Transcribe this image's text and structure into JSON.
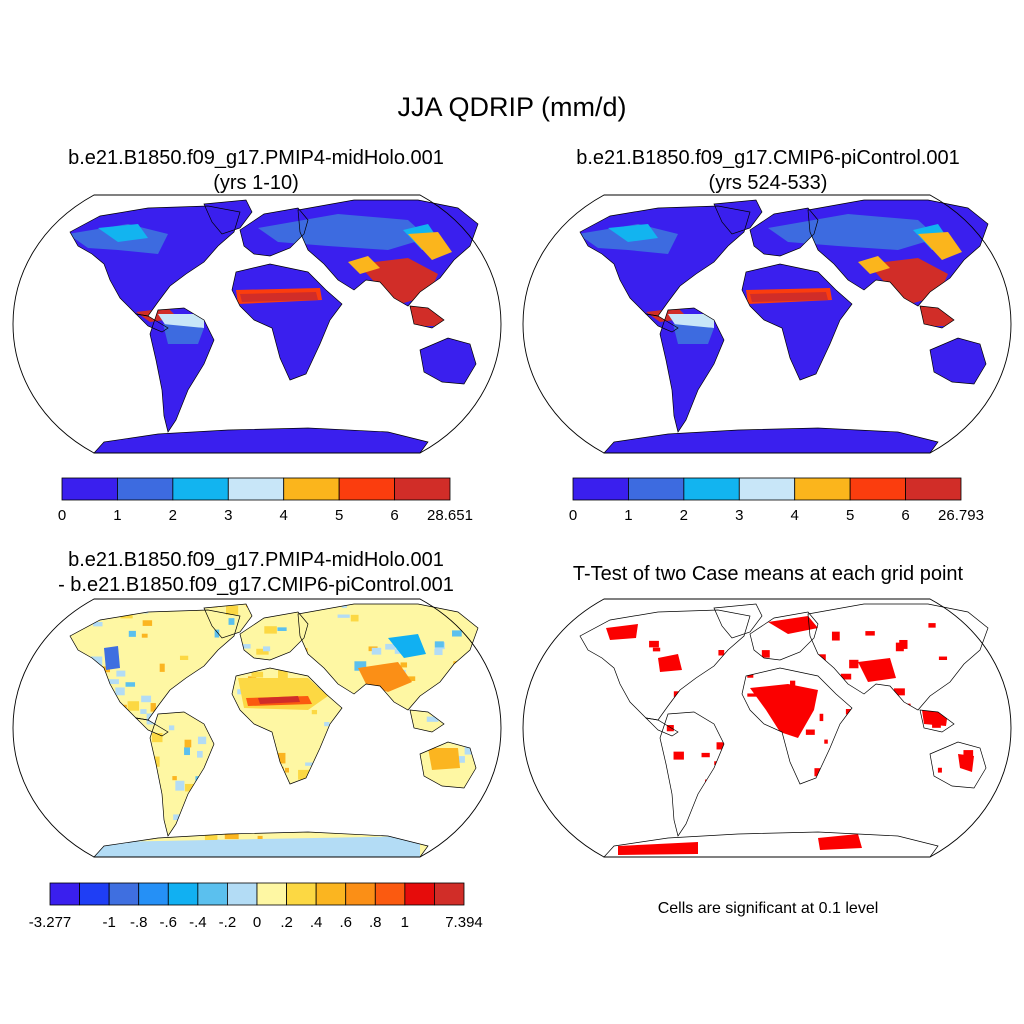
{
  "main_title": "JJA QDRIP (mm/d)",
  "panels": {
    "p1": {
      "title_line1": "b.e21.B1850.f09_g17.PMIP4-midHolo.001",
      "title_line2": "(yrs 1-10)"
    },
    "p2": {
      "title_line1": "b.e21.B1850.f09_g17.CMIP6-piControl.001",
      "title_line2": "(yrs 524-533)"
    },
    "p3": {
      "title_line1": "b.e21.B1850.f09_g17.PMIP4-midHolo.001",
      "title_line2": "- b.e21.B1850.f09_g17.CMIP6-piControl.001"
    },
    "p4": {
      "title_line1": "T-Test of two Case means at each grid point",
      "note": "Cells are significant at 0.1 level"
    }
  },
  "colorbars": {
    "cb1": {
      "colors": [
        "#3a1fee",
        "#3d6be0",
        "#12b4f0",
        "#c8e6f8",
        "#fbb51c",
        "#fb3d0e",
        "#d12d28"
      ],
      "labels": [
        "0",
        "1",
        "2",
        "3",
        "4",
        "5",
        "6",
        "28.651"
      ]
    },
    "cb2": {
      "colors": [
        "#3a1fee",
        "#3d6be0",
        "#12b4f0",
        "#c8e6f8",
        "#fbb51c",
        "#fb3d0e",
        "#d12d28"
      ],
      "labels": [
        "0",
        "1",
        "2",
        "3",
        "4",
        "5",
        "6",
        "26.793"
      ]
    },
    "cb3": {
      "colors": [
        "#3a1fee",
        "#1f3ef5",
        "#3f6fe0",
        "#2590f6",
        "#11b0f2",
        "#5bc0ee",
        "#b3dcf5",
        "#fef7a3",
        "#fcd843",
        "#fbb520",
        "#fb8f16",
        "#fb5a10",
        "#e60c0b",
        "#d12d28"
      ],
      "labels": [
        "-3.277",
        "",
        "-1",
        "-.8",
        "-.6",
        "-.4",
        "-.2",
        "0",
        ".2",
        ".4",
        ".6",
        ".8",
        "1",
        "",
        "7.394"
      ]
    }
  },
  "map_colors": {
    "ocean": "#ffffff",
    "outline": "#000000",
    "significant": "#fb0000"
  }
}
